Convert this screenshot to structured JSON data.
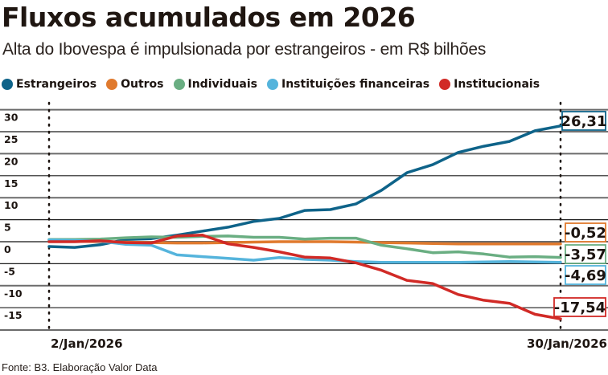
{
  "header": {
    "title": "Fluxos acumulados em 2026",
    "subtitle": "Alta do Ibovespa é impulsionada por estrangeiros - em R$ bilhões"
  },
  "footer": {
    "source": "Fonte: B3. Elaboração Valor Data"
  },
  "chart_data": {
    "type": "line",
    "title": "Fluxos acumulados em 2026",
    "subtitle": "Alta do Ibovespa é impulsionada por estrangeiros - em R$ bilhões",
    "xlabel": "",
    "ylabel": "R$ bilhões",
    "x_tick_labels": [
      "2/Jan/2026",
      "30/Jan/2026"
    ],
    "x_points": 21,
    "ylim": [
      -17.5,
      31
    ],
    "y_ticks": [
      30,
      25,
      20,
      15,
      10,
      5,
      0,
      -5,
      -10,
      -15
    ],
    "y_tick_labels": [
      "30",
      "25",
      "20",
      "15",
      "10",
      "5",
      "0",
      "-5",
      "-10",
      "-15"
    ],
    "grid": true,
    "legend_position": "top",
    "series": [
      {
        "name": "Estrangeiros",
        "color": "#0e6389",
        "values": [
          -1.1,
          -1.3,
          -0.7,
          0.5,
          0.7,
          1.5,
          2.4,
          3.3,
          4.6,
          5.3,
          7.1,
          7.3,
          8.6,
          11.7,
          15.7,
          17.5,
          20.3,
          21.7,
          22.8,
          25.2,
          26.31
        ],
        "end_label": "26,31"
      },
      {
        "name": "Outros",
        "color": "#e07a2e",
        "values": [
          0.2,
          0.1,
          0.0,
          -0.1,
          -0.2,
          -0.3,
          -0.3,
          -0.2,
          -0.1,
          0.0,
          0.0,
          0.0,
          -0.1,
          -0.2,
          -0.3,
          -0.4,
          -0.5,
          -0.5,
          -0.5,
          -0.5,
          -0.52
        ],
        "end_label": "-0,52"
      },
      {
        "name": "Individuais",
        "color": "#6aae82",
        "values": [
          0.5,
          0.5,
          0.6,
          0.9,
          1.1,
          1.0,
          1.2,
          1.3,
          1.0,
          1.0,
          0.6,
          0.8,
          0.8,
          -0.8,
          -1.6,
          -2.5,
          -2.3,
          -2.8,
          -3.5,
          -3.4,
          -3.57
        ],
        "end_label": "-3,57"
      },
      {
        "name": "Instituições financeiras",
        "color": "#55b4dc",
        "values": [
          0.4,
          0.3,
          0.1,
          -0.6,
          -0.8,
          -3.0,
          -3.4,
          -3.8,
          -4.2,
          -3.6,
          -4.0,
          -4.2,
          -4.5,
          -4.7,
          -4.7,
          -4.7,
          -4.7,
          -4.6,
          -4.5,
          -4.6,
          -4.69
        ],
        "end_label": "-4,69"
      },
      {
        "name": "Institucionais",
        "color": "#d12a26",
        "values": [
          0.0,
          0.0,
          0.2,
          -0.2,
          -0.3,
          1.3,
          1.5,
          -0.5,
          -1.3,
          -2.3,
          -3.5,
          -3.7,
          -4.8,
          -6.5,
          -8.8,
          -9.5,
          -12.0,
          -13.3,
          -14.0,
          -16.5,
          -17.54
        ],
        "end_label": "-17,54"
      }
    ]
  }
}
